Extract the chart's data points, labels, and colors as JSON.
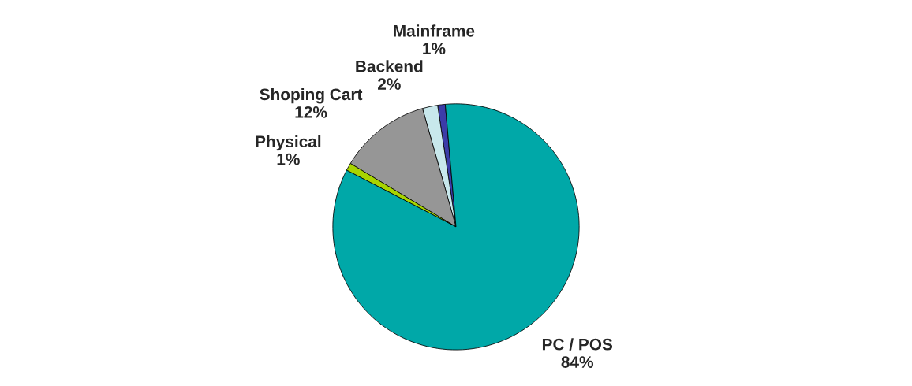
{
  "chart_data": {
    "type": "pie",
    "categories": [
      "Mainframe",
      "Backend",
      "Shoping Cart",
      "Physical",
      "PC / POS"
    ],
    "values": [
      1,
      2,
      12,
      1,
      84
    ],
    "colors": [
      "#3c3ca8",
      "#c8e8ec",
      "#969696",
      "#a8d400",
      "#00a8a8"
    ],
    "value_labels": [
      "1%",
      "2%",
      "12%",
      "1%",
      "84%"
    ],
    "legend": false
  }
}
